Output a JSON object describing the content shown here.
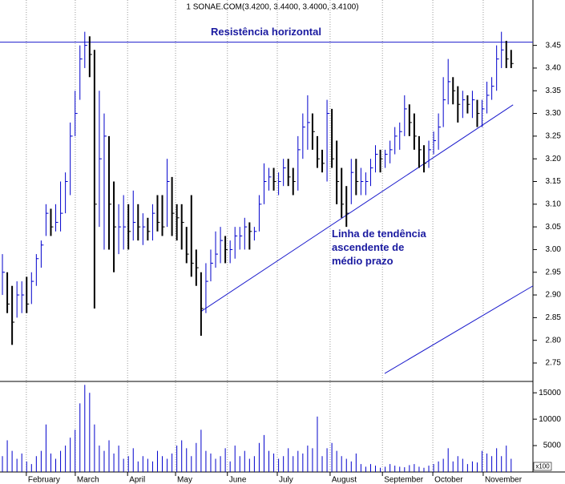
{
  "chart_data": {
    "type": "ohlc",
    "title": "1 SONAE.COM(3.4200, 3.4400, 3.4000, 3.4100)",
    "high": [
      2.99,
      2.95,
      2.92,
      2.93,
      2.93,
      2.94,
      2.95,
      2.99,
      3.02,
      3.1,
      3.09,
      3.1,
      3.15,
      3.17,
      3.28,
      3.35,
      3.45,
      3.48,
      3.47,
      3.44,
      3.35,
      3.3,
      3.25,
      3.15,
      3.1,
      3.12,
      3.1,
      3.13,
      3.1,
      3.08,
      3.07,
      3.1,
      3.12,
      3.12,
      3.2,
      3.16,
      3.1,
      3.1,
      3.05,
      3.12,
      3.0,
      2.95,
      2.97,
      3.0,
      3.04,
      3.05,
      3.03,
      3.02,
      3.05,
      3.05,
      3.07,
      3.06,
      3.05,
      3.12,
      3.19,
      3.18,
      3.18,
      3.17,
      3.2,
      3.2,
      3.18,
      3.25,
      3.3,
      3.34,
      3.3,
      3.25,
      3.22,
      3.33,
      3.31,
      3.24,
      3.18,
      3.14,
      3.2,
      3.2,
      3.18,
      3.17,
      3.2,
      3.23,
      3.22,
      3.22,
      3.24,
      3.27,
      3.28,
      3.34,
      3.32,
      3.3,
      3.25,
      3.23,
      3.24,
      3.26,
      3.3,
      3.38,
      3.42,
      3.38,
      3.36,
      3.35,
      3.34,
      3.35,
      3.33,
      3.33,
      3.37,
      3.38,
      3.45,
      3.48,
      3.46,
      3.44
    ],
    "low": [
      2.9,
      2.86,
      2.79,
      2.85,
      2.86,
      2.86,
      2.88,
      2.92,
      2.96,
      3.03,
      3.03,
      3.04,
      3.04,
      3.08,
      3.12,
      3.25,
      3.33,
      3.4,
      3.38,
      2.87,
      3.05,
      3.0,
      3.0,
      2.95,
      2.99,
      3.0,
      3.0,
      3.02,
      3.02,
      3.01,
      3.02,
      3.02,
      3.04,
      3.03,
      3.05,
      3.03,
      3.02,
      3.0,
      2.97,
      2.94,
      2.92,
      2.81,
      2.86,
      2.93,
      2.96,
      2.97,
      2.97,
      2.97,
      2.98,
      3.0,
      3.0,
      3.0,
      3.02,
      3.04,
      3.1,
      3.13,
      3.13,
      3.12,
      3.14,
      3.14,
      3.12,
      3.13,
      3.2,
      3.22,
      3.22,
      3.18,
      3.17,
      3.15,
      3.18,
      3.1,
      3.07,
      3.05,
      3.1,
      3.12,
      3.12,
      3.12,
      3.14,
      3.17,
      3.17,
      3.18,
      3.19,
      3.21,
      3.22,
      3.25,
      3.25,
      3.22,
      3.18,
      3.17,
      3.18,
      3.21,
      3.22,
      3.27,
      3.32,
      3.32,
      3.28,
      3.29,
      3.3,
      3.29,
      3.27,
      3.27,
      3.3,
      3.33,
      3.35,
      3.4,
      3.4,
      3.4
    ],
    "close": [
      2.95,
      2.88,
      2.84,
      2.9,
      2.9,
      2.88,
      2.93,
      2.98,
      3.01,
      3.08,
      3.05,
      3.06,
      3.08,
      3.15,
      3.25,
      3.3,
      3.42,
      3.45,
      3.43,
      3.1,
      3.2,
      3.25,
      3.1,
      3.05,
      3.05,
      3.05,
      3.04,
      3.06,
      3.05,
      3.05,
      3.04,
      3.08,
      3.06,
      3.05,
      3.15,
      3.08,
      3.07,
      3.06,
      2.99,
      2.97,
      2.96,
      2.87,
      2.93,
      2.97,
      2.99,
      3.02,
      3.0,
      3.0,
      3.03,
      3.03,
      3.05,
      3.04,
      3.04,
      3.1,
      3.15,
      3.16,
      3.15,
      3.15,
      3.18,
      3.16,
      3.15,
      3.22,
      3.27,
      3.28,
      3.26,
      3.2,
      3.19,
      3.3,
      3.2,
      3.15,
      3.1,
      3.08,
      3.17,
      3.15,
      3.15,
      3.15,
      3.18,
      3.21,
      3.2,
      3.21,
      3.22,
      3.25,
      3.26,
      3.31,
      3.28,
      3.25,
      3.22,
      3.19,
      3.22,
      3.24,
      3.27,
      3.33,
      3.37,
      3.35,
      3.32,
      3.33,
      3.32,
      3.33,
      3.3,
      3.31,
      3.34,
      3.36,
      3.42,
      3.44,
      3.42,
      3.41
    ],
    "volume": [
      3000,
      6000,
      4000,
      2500,
      3500,
      2000,
      1500,
      3000,
      4000,
      9000,
      3500,
      2500,
      4000,
      5000,
      6500,
      8000,
      13000,
      16500,
      15000,
      9000,
      5000,
      4000,
      6000,
      3500,
      5000,
      2500,
      3000,
      4500,
      2000,
      3000,
      2500,
      2000,
      4000,
      3000,
      2500,
      3500,
      5000,
      6000,
      4500,
      3000,
      5500,
      8000,
      4000,
      3500,
      2500,
      3000,
      4500,
      2000,
      5000,
      3000,
      4000,
      2500,
      3000,
      5500,
      7000,
      4000,
      3500,
      2500,
      3000,
      4500,
      3000,
      4000,
      3500,
      5000,
      4500,
      10500,
      3000,
      4500,
      5500,
      4000,
      3000,
      2500,
      2000,
      3500,
      1500,
      1000,
      1500,
      1200,
      800,
      1000,
      1500,
      1200,
      1000,
      900,
      1300,
      1500,
      1000,
      800,
      1200,
      1500,
      2000,
      2500,
      4500,
      2000,
      3000,
      2500,
      1500,
      2000,
      1800,
      4000,
      3500,
      3000,
      4500,
      3000,
      5000,
      2500
    ],
    "up_color": "#0000cc",
    "down_color": "#000000",
    "xlim": [
      0,
      110
    ],
    "xticks": [
      {
        "value": 5.6,
        "label": "February"
      },
      {
        "value": 15.7,
        "label": "March"
      },
      {
        "value": 26.5,
        "label": "April"
      },
      {
        "value": 36.4,
        "label": "May"
      },
      {
        "value": 47.1,
        "label": "June"
      },
      {
        "value": 57.4,
        "label": "July"
      },
      {
        "value": 68.3,
        "label": "August"
      },
      {
        "value": 79.1,
        "label": "September"
      },
      {
        "value": 89.5,
        "label": "October"
      },
      {
        "value": 99.9,
        "label": "November"
      }
    ],
    "ylim": [
      2.72,
      3.55
    ],
    "yticks": [
      2.75,
      {
        "value": 2.8,
        "label": "2.80"
      },
      2.85,
      {
        "value": 2.9,
        "label": "2.90"
      },
      2.95,
      {
        "value": 3.0,
        "label": "3.00"
      },
      3.05,
      {
        "value": 3.1,
        "label": "3.10"
      },
      3.15,
      {
        "value": 3.2,
        "label": "3.20"
      },
      3.25,
      {
        "value": 3.3,
        "label": "3.30"
      },
      3.35,
      {
        "value": 3.4,
        "label": "3.40"
      },
      3.45
    ],
    "volume_ylim": [
      0,
      17000
    ],
    "volume_yticks": [
      5000,
      10000,
      15000
    ],
    "volume_unit": "x100",
    "lines": [
      {
        "label": "Resistência horizontal",
        "x": [
          0,
          110
        ],
        "y": [
          3.457,
          3.457
        ]
      },
      {
        "label": [
          "Linha de tendência",
          "ascendente de",
          "médio prazo"
        ],
        "x": [
          41.4,
          105.9
        ],
        "y": [
          2.863,
          3.319
        ]
      },
      {
        "x": [
          79.4,
          110
        ],
        "y": [
          2.727,
          2.92
        ]
      }
    ]
  }
}
